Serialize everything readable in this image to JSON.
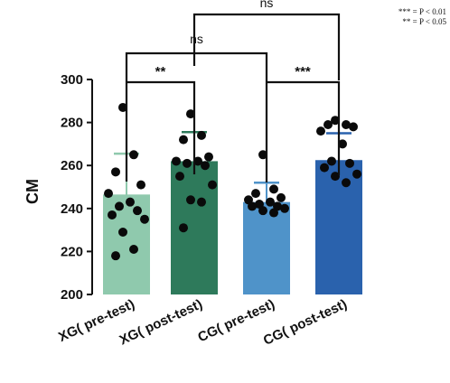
{
  "chart_data": {
    "type": "bar",
    "categories": [
      "XG( pre-test)",
      "XG( post-test)",
      "CG( pre-test)",
      "CG( post-test)"
    ],
    "values": [
      246.5,
      262,
      243,
      262.5
    ],
    "error_upper": [
      265.5,
      275.5,
      252,
      275
    ],
    "bar_colors": [
      "#8fc9ad",
      "#2e7a5b",
      "#4f93c9",
      "#2a62ad"
    ],
    "points": [
      [
        287,
        265,
        257,
        251,
        247,
        243,
        241,
        239,
        237,
        235,
        229,
        221,
        218
      ],
      [
        284,
        274,
        272,
        264,
        262,
        262,
        261,
        260,
        255,
        251,
        244,
        243,
        231
      ],
      [
        265,
        249,
        247,
        245,
        244,
        243,
        242,
        241,
        241,
        240,
        239,
        238
      ],
      [
        281,
        279,
        279,
        278,
        276,
        270,
        262,
        261,
        259,
        256,
        255,
        252
      ]
    ],
    "xlabel": "",
    "ylabel": "CM",
    "ylim": [
      200,
      300
    ],
    "yticks": [
      "200",
      "220",
      "240",
      "260",
      "280",
      "300"
    ],
    "brackets": [
      {
        "from": 0,
        "to": 1,
        "label": "**"
      },
      {
        "from": 0,
        "to": 2,
        "label": "ns"
      },
      {
        "from": 2,
        "to": 3,
        "label": "***"
      },
      {
        "from": 1,
        "to": 3,
        "label": "ns"
      }
    ],
    "legend_lines": [
      "*** = P < 0.01",
      "** = P < 0.05"
    ]
  }
}
